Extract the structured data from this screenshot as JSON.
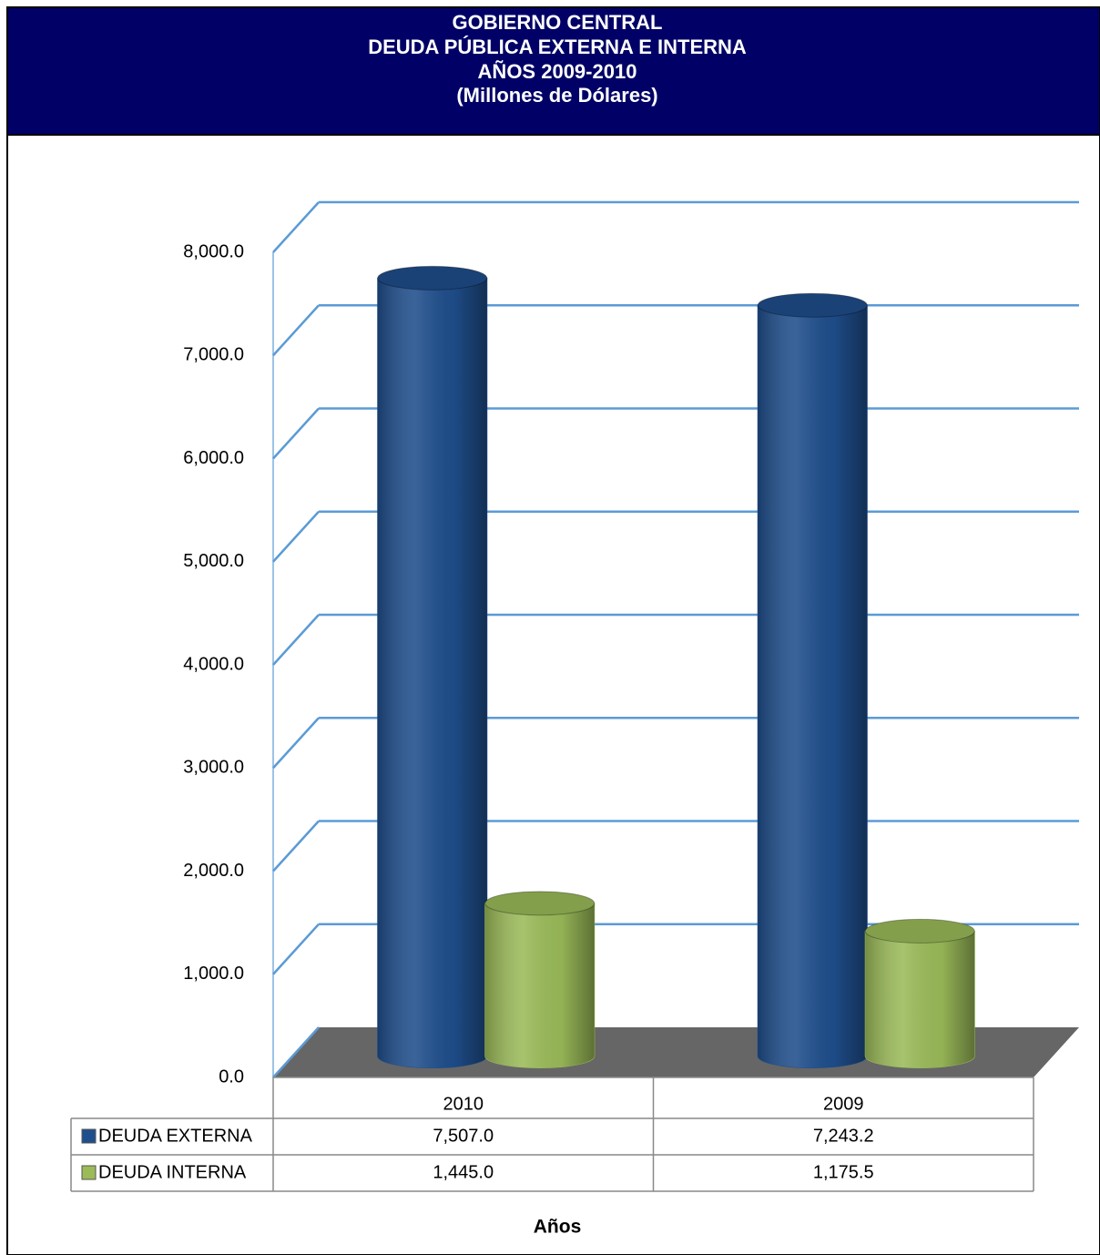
{
  "chart_data": {
    "type": "bar",
    "title": "GOBIERNO CENTRAL",
    "subtitle": [
      "DEUDA PÚBLICA EXTERNA E INTERNA",
      "AÑOS 2009-2010",
      "(Millones de Dólares)"
    ],
    "xlabel": "Años",
    "categories": [
      "2010",
      "2009"
    ],
    "series": [
      {
        "name": "DEUDA EXTERNA",
        "color": "#1f4e8c",
        "values": [
          7507.0,
          7243.2
        ],
        "value_labels": [
          "7,507.0",
          "7,243.2"
        ]
      },
      {
        "name": "DEUDA INTERNA",
        "color": "#9bbb59",
        "values": [
          1445.0,
          1175.5
        ],
        "value_labels": [
          "1,445.0",
          "1,175.5"
        ]
      }
    ],
    "ylim": [
      0,
      8000
    ],
    "yticks": [
      {
        "value": 0,
        "label": "0.0"
      },
      {
        "value": 1000,
        "label": "1,000.0"
      },
      {
        "value": 2000,
        "label": "2,000.0"
      },
      {
        "value": 3000,
        "label": "3,000.0"
      },
      {
        "value": 4000,
        "label": "4,000.0"
      },
      {
        "value": 5000,
        "label": "5,000.0"
      },
      {
        "value": 6000,
        "label": "6,000.0"
      },
      {
        "value": 7000,
        "label": "7,000.0"
      },
      {
        "value": 8000,
        "label": "8,000.0"
      }
    ],
    "grid": true
  }
}
